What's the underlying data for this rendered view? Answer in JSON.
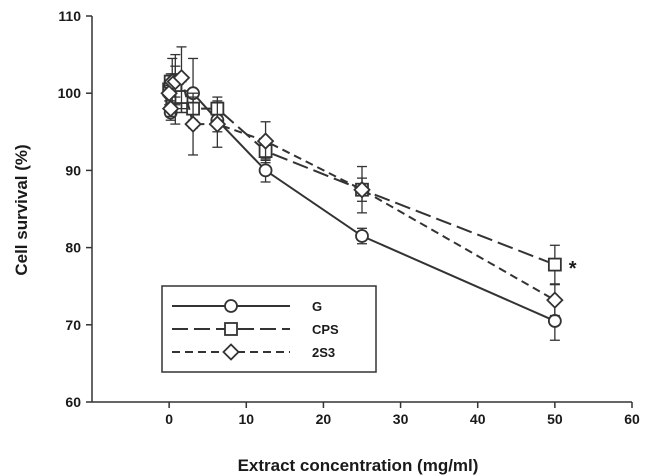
{
  "chart_data": {
    "type": "line",
    "xlabel": "Extract concentration (mg/ml)",
    "ylabel": "Cell survival (%)",
    "xlim": [
      -10,
      60
    ],
    "ylim": [
      60,
      110
    ],
    "xticks": [
      0,
      10,
      20,
      30,
      40,
      50,
      60
    ],
    "yticks": [
      60,
      70,
      80,
      90,
      100,
      110
    ],
    "grid": false,
    "legend_position": "bottom-left",
    "series": [
      {
        "name": "G",
        "marker": "circle",
        "dash": "solid",
        "color": "#333333",
        "points": [
          {
            "x": 0,
            "y": 100,
            "err": 1.5
          },
          {
            "x": 0.2,
            "y": 97.5,
            "err": 1
          },
          {
            "x": 0.4,
            "y": 101,
            "err": 1.5
          },
          {
            "x": 0.8,
            "y": 100.5,
            "err": 2
          },
          {
            "x": 1.6,
            "y": 99.5,
            "err": 2
          },
          {
            "x": 3.1,
            "y": 100,
            "err": 4.5
          },
          {
            "x": 6.25,
            "y": 96.5,
            "err": 1.5
          },
          {
            "x": 12.5,
            "y": 90,
            "err": 1.5
          },
          {
            "x": 25,
            "y": 81.5,
            "err": 1
          },
          {
            "x": 50,
            "y": 70.5,
            "err": 2.5
          }
        ]
      },
      {
        "name": "CPS",
        "marker": "square",
        "dash": "long",
        "color": "#333333",
        "points": [
          {
            "x": 0,
            "y": 100.5,
            "err": 1
          },
          {
            "x": 0.2,
            "y": 101.5,
            "err": 1
          },
          {
            "x": 0.4,
            "y": 99.5,
            "err": 2
          },
          {
            "x": 0.8,
            "y": 100.5,
            "err": 4.5
          },
          {
            "x": 1.6,
            "y": 99.5,
            "err": 2
          },
          {
            "x": 3.1,
            "y": 98,
            "err": 1.5
          },
          {
            "x": 6.25,
            "y": 98,
            "err": 1.5
          },
          {
            "x": 12.5,
            "y": 92.5,
            "err": 1.5
          },
          {
            "x": 25,
            "y": 87.5,
            "err": 3
          },
          {
            "x": 50,
            "y": 77.8,
            "err": 2.5
          }
        ]
      },
      {
        "name": "2S3",
        "marker": "diamond",
        "dash": "short",
        "color": "#333333",
        "points": [
          {
            "x": 0,
            "y": 100,
            "err": 1
          },
          {
            "x": 0.2,
            "y": 98,
            "err": 1
          },
          {
            "x": 0.4,
            "y": 101.5,
            "err": 3
          },
          {
            "x": 0.8,
            "y": 101.5,
            "err": 2
          },
          {
            "x": 1.6,
            "y": 102,
            "err": 4
          },
          {
            "x": 3.1,
            "y": 96,
            "err": 4
          },
          {
            "x": 6.25,
            "y": 96,
            "err": 3
          },
          {
            "x": 12.5,
            "y": 93.8,
            "err": 2.5
          },
          {
            "x": 25,
            "y": 87.5,
            "err": 1.5
          },
          {
            "x": 50,
            "y": 73.2,
            "err": 2
          }
        ]
      }
    ],
    "annotations": [
      {
        "text": "*",
        "x": 51.8,
        "y": 77.6
      }
    ]
  }
}
